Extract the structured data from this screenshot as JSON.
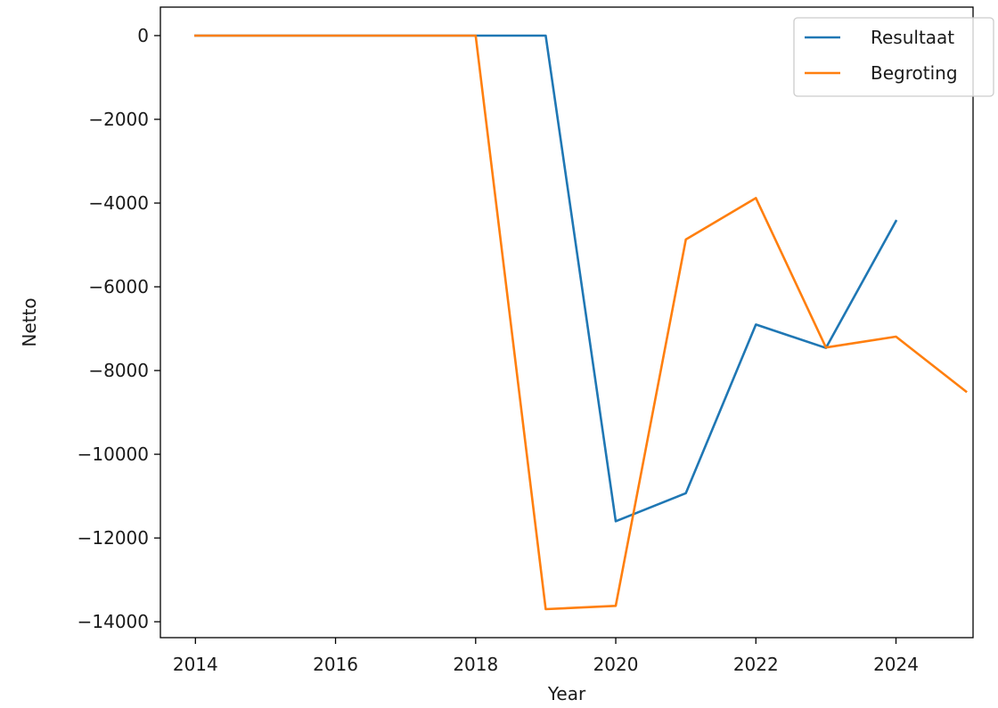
{
  "chart_data": {
    "type": "line",
    "xlabel": "Year",
    "ylabel": "Netto",
    "xlim": [
      2013.5,
      2025.1
    ],
    "ylim": [
      -14380,
      680
    ],
    "xticks": [
      2014,
      2016,
      2018,
      2020,
      2022,
      2024
    ],
    "yticks": [
      0,
      -2000,
      -4000,
      -6000,
      -8000,
      -10000,
      -12000,
      -14000
    ],
    "ytick_labels": [
      "0",
      "−2000",
      "−4000",
      "−6000",
      "−8000",
      "−10000",
      "−12000",
      "−14000"
    ],
    "grid": false,
    "legend_position": "top-right",
    "series": [
      {
        "name": "Resultaat",
        "color": "#1f77b4",
        "x": [
          2014,
          2015,
          2016,
          2017,
          2018,
          2019,
          2020,
          2021,
          2022,
          2023,
          2024
        ],
        "y": [
          0,
          0,
          0,
          0,
          0,
          0,
          -11600,
          -10930,
          -6900,
          -7460,
          -4430
        ]
      },
      {
        "name": "Begroting",
        "color": "#ff7f0e",
        "x": [
          2014,
          2015,
          2016,
          2017,
          2018,
          2019,
          2020,
          2021,
          2022,
          2023,
          2024,
          2025
        ],
        "y": [
          0,
          0,
          0,
          0,
          0,
          -13700,
          -13620,
          -4870,
          -3880,
          -7450,
          -7190,
          -8500
        ]
      }
    ]
  }
}
